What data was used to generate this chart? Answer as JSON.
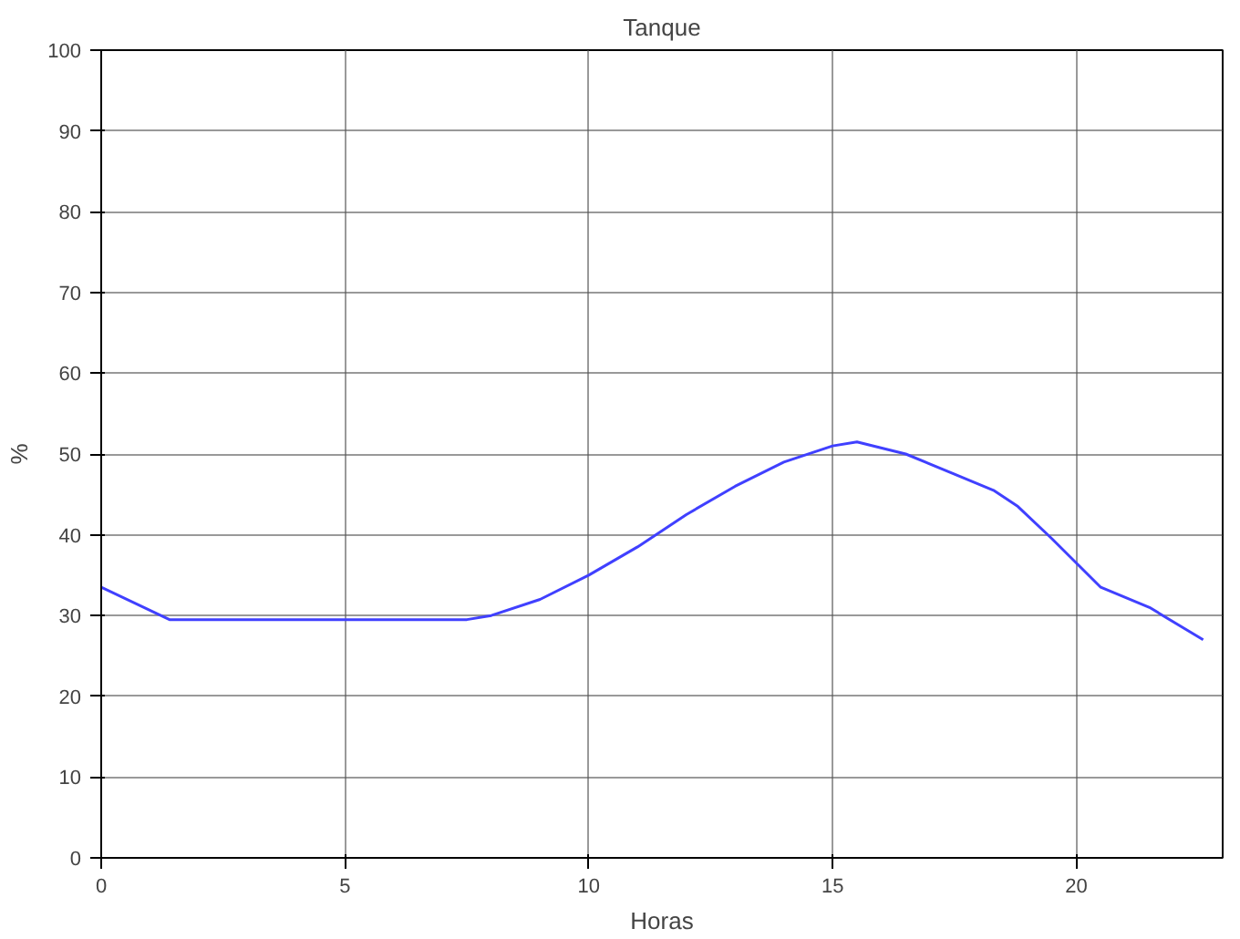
{
  "chart_data": {
    "type": "line",
    "title": "Tanque",
    "xlabel": "Horas",
    "ylabel": "%",
    "xlim": [
      0,
      23
    ],
    "xticks": [
      0,
      5,
      10,
      15,
      20
    ],
    "ylim": [
      0,
      100
    ],
    "yticks": [
      0,
      10,
      20,
      30,
      40,
      50,
      60,
      70,
      80,
      90,
      100
    ],
    "grid": true,
    "series": [
      {
        "color": "#4040ff",
        "x": [
          0,
          1.4,
          7.5,
          8,
          9,
          10,
          11,
          12,
          13,
          14,
          15,
          15.5,
          16.5,
          17.5,
          18.3,
          18.8,
          19.5,
          20.5,
          21.5,
          22.6
        ],
        "values": [
          33.5,
          29.5,
          29.5,
          30,
          32,
          35,
          38.5,
          42.5,
          46,
          49,
          51,
          51.5,
          50,
          47.5,
          45.5,
          43.5,
          39.5,
          33.5,
          31,
          27
        ]
      }
    ]
  }
}
